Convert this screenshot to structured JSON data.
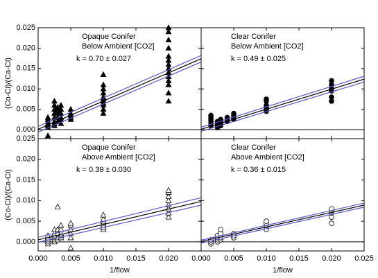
{
  "chart_data": [
    {
      "type": "scatter",
      "annotations": [
        "Opaque Conifer",
        "Below Ambient [CO2]",
        "k = 0.70 ± 0.027"
      ],
      "ylabel": "(Co-Ci)/(Ca-Ci)",
      "xlim": [
        0,
        0.025
      ],
      "ylim": [
        -0.0022,
        0.025
      ],
      "xticks": [
        0,
        0.005,
        0.01,
        0.015,
        0.02,
        0.025
      ],
      "yticks": [
        {
          "value": 0,
          "label": "0.000"
        },
        {
          "value": 0.005,
          "label": "0.005"
        },
        {
          "value": 0.01,
          "label": "0.010"
        },
        {
          "value": 0.015,
          "label": "0.015"
        },
        {
          "value": 0.02,
          "label": "0.020"
        },
        {
          "value": 0.025,
          "label": "0.025"
        }
      ],
      "series": [
        {
          "marker": "triangle-filled",
          "color": "#000000",
          "x": [
            0.0015,
            0.0015,
            0.0015,
            0.0015,
            0.0015,
            0.0015,
            0.0015,
            0.0025,
            0.0025,
            0.0025,
            0.0025,
            0.0025,
            0.0025,
            0.0025,
            0.0025,
            0.003,
            0.003,
            0.003,
            0.003,
            0.003,
            0.003,
            0.0035,
            0.0035,
            0.0035,
            0.0035,
            0.0035,
            0.0035,
            0.005,
            0.005,
            0.005,
            0.005,
            0.005,
            0.01,
            0.01,
            0.01,
            0.01,
            0.01,
            0.01,
            0.01,
            0.01,
            0.01,
            0.01,
            0.01,
            0.02,
            0.02,
            0.02,
            0.02,
            0.02,
            0.02,
            0.02,
            0.02,
            0.02,
            0.02,
            0.02,
            0.02,
            0.02,
            0.02
          ],
          "values": [
            0.0005,
            0.001,
            0.0015,
            0.002,
            0.0025,
            0.003,
            -0.0015,
            0.001,
            0.002,
            0.003,
            0.004,
            0.005,
            0.006,
            0.007,
            0.0015,
            0.002,
            0.003,
            0.004,
            0.0045,
            0.005,
            0.0055,
            0.0015,
            0.0025,
            0.003,
            0.004,
            0.005,
            0.006,
            0.0025,
            0.003,
            0.0035,
            0.004,
            0.005,
            0.005,
            0.006,
            0.0065,
            0.007,
            0.0075,
            0.008,
            0.009,
            0.01,
            0.011,
            0.0135,
            0.004,
            0.007,
            0.009,
            0.011,
            0.012,
            0.013,
            0.014,
            0.015,
            0.016,
            0.017,
            0.018,
            0.02,
            0.022,
            0.024,
            0.025
          ]
        },
        {
          "marker": "line",
          "color": "#5555cc",
          "x": [
            0,
            0.025
          ],
          "values": [
            0.0008,
            0.0182
          ]
        },
        {
          "marker": "line",
          "color": "#5555cc",
          "x": [
            0,
            0.025
          ],
          "values": [
            -0.0006,
            0.0166
          ]
        },
        {
          "marker": "line",
          "color": "#000000",
          "x": [
            0,
            0.025
          ],
          "values": [
            0.0001,
            0.0174
          ]
        }
      ]
    },
    {
      "type": "scatter",
      "annotations": [
        "Clear Conifer",
        "Below Ambient [CO2]",
        "k = 0.49 ± 0.025"
      ],
      "xlim": [
        0,
        0.025
      ],
      "ylim": [
        -0.0022,
        0.025
      ],
      "xticks": [
        0,
        0.005,
        0.01,
        0.015,
        0.02,
        0.025
      ],
      "yticks": [
        0,
        0.005,
        0.01,
        0.015,
        0.02,
        0.025
      ],
      "series": [
        {
          "marker": "circle-filled",
          "color": "#000000",
          "x": [
            0.0015,
            0.0015,
            0.0015,
            0.0015,
            0.0015,
            0.0015,
            0.0025,
            0.0025,
            0.0025,
            0.0025,
            0.003,
            0.003,
            0.003,
            0.003,
            0.004,
            0.004,
            0.004,
            0.005,
            0.005,
            0.005,
            0.005,
            0.01,
            0.01,
            0.01,
            0.01,
            0.01,
            0.01,
            0.02,
            0.02,
            0.02,
            0.02,
            0.02,
            0.02
          ],
          "values": [
            0.001,
            0.0015,
            0.002,
            0.0025,
            0.003,
            0.0035,
            0.0005,
            0.001,
            0.0015,
            0.002,
            0.001,
            0.0015,
            0.002,
            0.0025,
            0.002,
            0.0025,
            0.003,
            0.0025,
            0.003,
            0.0035,
            0.004,
            0.0045,
            0.005,
            0.0055,
            0.006,
            0.007,
            0.0075,
            0.007,
            0.008,
            0.0095,
            0.01,
            0.011,
            0.012
          ]
        },
        {
          "marker": "line",
          "color": "#5555cc",
          "x": [
            0,
            0.025
          ],
          "values": [
            0.0006,
            0.0131
          ]
        },
        {
          "marker": "line",
          "color": "#5555cc",
          "x": [
            0,
            0.025
          ],
          "values": [
            -0.0004,
            0.0117
          ]
        },
        {
          "marker": "line",
          "color": "#000000",
          "x": [
            0,
            0.025
          ],
          "values": [
            0.0001,
            0.0124
          ]
        }
      ]
    },
    {
      "type": "scatter",
      "annotations": [
        "Opaque Conifer",
        "Above Ambient [CO2]",
        "k = 0.39 ± 0.030"
      ],
      "ylabel": "(Co-Ci)/(Ca-Ci)",
      "xlabel": "1/flow",
      "xlim": [
        0,
        0.025
      ],
      "ylim": [
        -0.0022,
        0.025
      ],
      "xticks": [
        {
          "value": 0,
          "label": "0.000"
        },
        {
          "value": 0.005,
          "label": "0.005"
        },
        {
          "value": 0.01,
          "label": "0.010"
        },
        {
          "value": 0.015,
          "label": "0.015"
        },
        {
          "value": 0.02,
          "label": "0.020"
        }
      ],
      "yticks": [
        {
          "value": 0,
          "label": "0.000"
        },
        {
          "value": 0.005,
          "label": "0.005"
        },
        {
          "value": 0.01,
          "label": "0.010"
        },
        {
          "value": 0.015,
          "label": "0.015"
        },
        {
          "value": 0.02,
          "label": "0.020"
        },
        {
          "value": 0.025,
          "label": "0.025"
        }
      ],
      "series": [
        {
          "marker": "triangle-open",
          "color": "#000000",
          "x": [
            0.0015,
            0.0015,
            0.0015,
            0.0015,
            0.0015,
            0.0025,
            0.0025,
            0.0025,
            0.0025,
            0.0025,
            0.0025,
            0.003,
            0.003,
            0.003,
            0.003,
            0.003,
            0.0035,
            0.0035,
            0.0035,
            0.0035,
            0.0035,
            0.005,
            0.005,
            0.005,
            0.005,
            0.005,
            0.005,
            0.01,
            0.01,
            0.01,
            0.01,
            0.01,
            0.01,
            0.01,
            0.02,
            0.02,
            0.02,
            0.02,
            0.02,
            0.02,
            0.02,
            0.02
          ],
          "values": [
            -0.0005,
            0,
            0.0005,
            0.001,
            0.0015,
            0,
            0.0005,
            0.001,
            0.0015,
            0.002,
            0.003,
            0.0005,
            0.001,
            0.002,
            0.003,
            0.0085,
            0.001,
            0.0015,
            0.002,
            0.003,
            0.004,
            -0.0015,
            0.001,
            0.002,
            0.003,
            0.004,
            0.0045,
            0.003,
            0.0035,
            0.004,
            0.0045,
            0.005,
            0.0055,
            0.0065,
            0.006,
            0.007,
            0.008,
            0.009,
            0.01,
            0.011,
            0.012,
            0.0125
          ]
        },
        {
          "marker": "line",
          "color": "#5555cc",
          "x": [
            0,
            0.025
          ],
          "values": [
            0.0011,
            0.0107
          ]
        },
        {
          "marker": "line",
          "color": "#5555cc",
          "x": [
            0,
            0.025
          ],
          "values": [
            -0.0001,
            0.0089
          ]
        },
        {
          "marker": "line",
          "color": "#000000",
          "x": [
            0,
            0.025
          ],
          "values": [
            0.0005,
            0.0098
          ]
        }
      ]
    },
    {
      "type": "scatter",
      "annotations": [
        "Clear Conifer",
        "Above Ambient [CO2]",
        "k = 0.36 ± 0.015"
      ],
      "xlabel": "1/flow",
      "xlim": [
        0,
        0.025
      ],
      "ylim": [
        -0.0022,
        0.025
      ],
      "xticks": [
        {
          "value": 0,
          "label": "0.000"
        },
        {
          "value": 0.005,
          "label": "0.005"
        },
        {
          "value": 0.01,
          "label": "0.010"
        },
        {
          "value": 0.015,
          "label": "0.015"
        },
        {
          "value": 0.02,
          "label": "0.020"
        },
        {
          "value": 0.025,
          "label": "0.025"
        }
      ],
      "yticks": [
        0,
        0.005,
        0.01,
        0.015,
        0.02,
        0.025
      ],
      "series": [
        {
          "marker": "circle-open",
          "color": "#000000",
          "x": [
            0.0015,
            0.0015,
            0.0015,
            0.0025,
            0.0025,
            0.0025,
            0.0025,
            0.003,
            0.003,
            0.003,
            0.003,
            0.005,
            0.005,
            0.005,
            0.01,
            0.01,
            0.01,
            0.01,
            0.02,
            0.02,
            0.02,
            0.02,
            0.02
          ],
          "values": [
            -0.0005,
            0,
            0.0005,
            0,
            0.0005,
            0.001,
            0.0015,
            0.0005,
            0.001,
            0.002,
            0.003,
            0.001,
            0.0015,
            0.002,
            0.003,
            0.004,
            0.0045,
            0.005,
            0.0045,
            0.006,
            0.007,
            0.0075,
            0.008
          ]
        },
        {
          "marker": "line",
          "color": "#5555cc",
          "x": [
            0,
            0.025
          ],
          "values": [
            0.0004,
            0.0094
          ]
        },
        {
          "marker": "line",
          "color": "#5555cc",
          "x": [
            0,
            0.025
          ],
          "values": [
            -0.0003,
            0.0084
          ]
        },
        {
          "marker": "line",
          "color": "#000000",
          "x": [
            0,
            0.025
          ],
          "values": [
            0.0001,
            0.0089
          ]
        }
      ]
    }
  ]
}
